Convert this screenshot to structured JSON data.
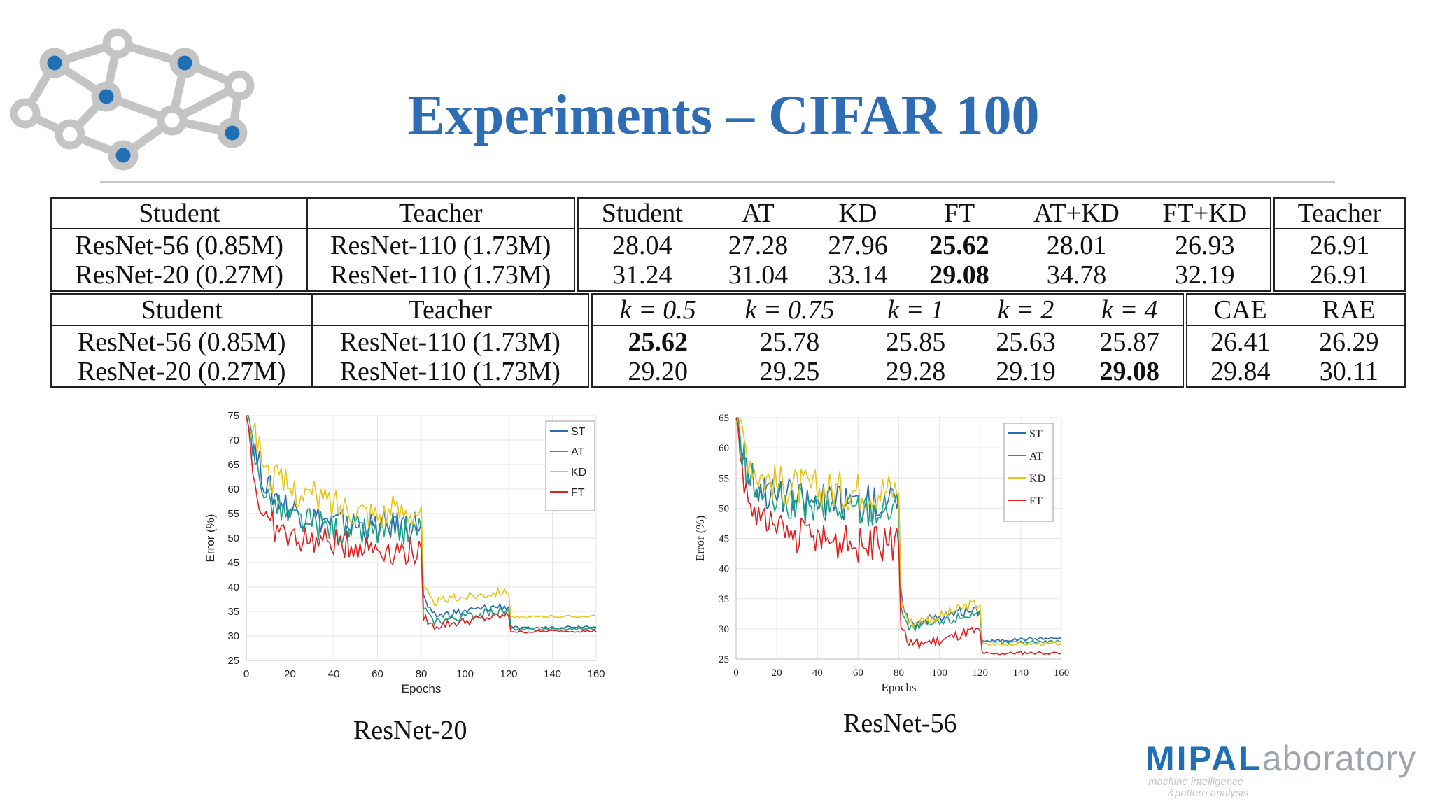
{
  "slide": {
    "title": "Experiments – CIFAR 100"
  },
  "table1": {
    "headers": [
      "Student",
      "Teacher",
      "Student",
      "AT",
      "KD",
      "FT",
      "AT+KD",
      "FT+KD",
      "Teacher"
    ],
    "rows": [
      [
        "ResNet-56 (0.85M)",
        "ResNet-110 (1.73M)",
        "28.04",
        "27.28",
        "27.96",
        "25.62",
        "28.01",
        "26.93",
        "26.91"
      ],
      [
        "ResNet-20 (0.27M)",
        "ResNet-110 (1.73M)",
        "31.24",
        "31.04",
        "33.14",
        "29.08",
        "34.78",
        "32.19",
        "26.91"
      ]
    ]
  },
  "table2": {
    "headers": [
      "Student",
      "Teacher",
      "k = 0.5",
      "k = 0.75",
      "k = 1",
      "k = 2",
      "k = 4",
      "CAE",
      "RAE"
    ],
    "rows": [
      [
        "ResNet-56 (0.85M)",
        "ResNet-110 (1.73M)",
        "25.62",
        "25.78",
        "25.85",
        "25.63",
        "25.87",
        "26.41",
        "26.29"
      ],
      [
        "ResNet-20 (0.27M)",
        "ResNet-110 (1.73M)",
        "29.20",
        "29.25",
        "29.28",
        "29.19",
        "29.08",
        "29.84",
        "30.11"
      ]
    ]
  },
  "captions": {
    "resnet20": "ResNet-20",
    "resnet56": "ResNet-56"
  },
  "logo": {
    "main_bold": "MIPAL",
    "main_light": "aboratory",
    "sub1": "machine intelligence",
    "sub2": "&pattern analysis"
  },
  "colors": {
    "title": "#2e6db4",
    "ST": "#2b6cb0",
    "AT": "#16a085",
    "KD": "#e6c619",
    "FT": "#e02020"
  },
  "chart_data": [
    {
      "type": "line",
      "title": "ResNet-20",
      "xlabel": "Epochs",
      "ylabel": "Error (%)",
      "xlim": [
        0,
        160
      ],
      "ylim": [
        25,
        75
      ],
      "xticks": [
        0,
        20,
        40,
        60,
        80,
        100,
        120,
        140,
        160
      ],
      "yticks": [
        25,
        30,
        35,
        40,
        45,
        50,
        55,
        60,
        65,
        70,
        75
      ],
      "legend": "top-right",
      "x": [
        0,
        5,
        10,
        20,
        40,
        60,
        80,
        81,
        85,
        100,
        115,
        120,
        121,
        125,
        140,
        160
      ],
      "series": [
        {
          "name": "ST",
          "values": [
            75,
            66,
            60,
            56,
            53,
            52,
            53,
            38,
            34,
            35,
            36,
            36,
            32,
            31.5,
            31.8,
            32
          ]
        },
        {
          "name": "AT",
          "values": [
            75,
            64,
            58,
            54,
            52,
            51,
            52,
            36,
            33,
            34,
            35,
            35,
            31.5,
            31.3,
            31.4,
            31.5
          ]
        },
        {
          "name": "KD",
          "values": [
            75,
            70,
            63,
            60,
            57,
            55,
            56,
            40,
            37,
            38,
            39,
            39,
            34,
            33.8,
            34,
            34
          ]
        },
        {
          "name": "FT",
          "values": [
            75,
            58,
            53,
            50,
            49,
            48,
            47,
            34,
            32,
            33,
            34,
            34,
            31,
            30.8,
            31,
            31
          ]
        }
      ]
    },
    {
      "type": "line",
      "title": "ResNet-56",
      "xlabel": "Epochs",
      "ylabel": "Error (%)",
      "xlim": [
        0,
        160
      ],
      "ylim": [
        25,
        65
      ],
      "xticks": [
        0,
        20,
        40,
        60,
        80,
        100,
        120,
        140,
        160
      ],
      "yticks": [
        25,
        30,
        35,
        40,
        45,
        50,
        55,
        60,
        65
      ],
      "legend": "top-right",
      "x": [
        0,
        5,
        10,
        20,
        40,
        60,
        80,
        81,
        85,
        100,
        115,
        120,
        121,
        125,
        140,
        160
      ],
      "series": [
        {
          "name": "ST",
          "values": [
            65,
            57,
            54,
            52,
            51,
            51,
            51,
            36,
            31,
            32,
            33,
            33,
            28,
            28,
            28.3,
            28.5
          ]
        },
        {
          "name": "AT",
          "values": [
            65,
            56,
            53,
            51,
            50,
            50,
            50,
            34,
            30,
            31,
            32.5,
            32.5,
            27.8,
            27.7,
            27.8,
            28
          ]
        },
        {
          "name": "KD",
          "values": [
            65,
            60,
            56,
            54,
            53,
            53,
            53,
            35,
            31,
            32,
            34,
            34,
            27.5,
            27.4,
            27.5,
            27.5
          ]
        },
        {
          "name": "FT",
          "values": [
            65,
            52,
            49,
            46,
            45,
            44,
            44,
            31,
            27.5,
            28,
            29.5,
            29.5,
            26,
            25.8,
            26,
            26
          ]
        }
      ]
    }
  ]
}
